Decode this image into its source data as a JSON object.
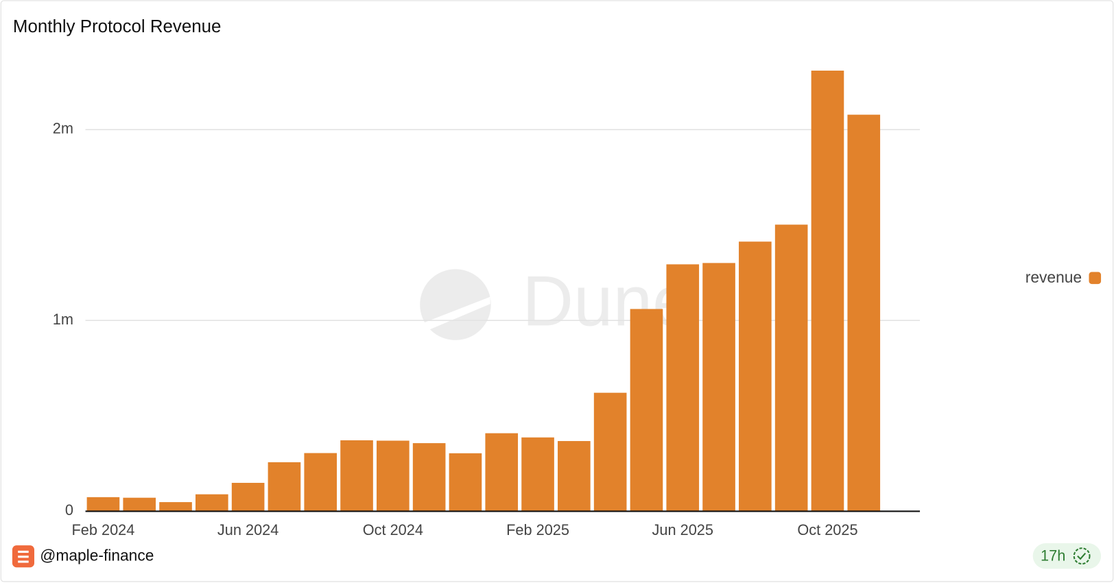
{
  "chart_data": {
    "type": "bar",
    "title": "Monthly Protocol Revenue",
    "categories": [
      "Feb 2024",
      null,
      null,
      null,
      "Jun 2024",
      null,
      null,
      null,
      "Oct 2024",
      null,
      null,
      null,
      "Feb 2025",
      null,
      null,
      null,
      "Jun 2025",
      null,
      null,
      null,
      "Oct 2025",
      null
    ],
    "series": [
      {
        "name": "revenue",
        "color": "#e2822b",
        "values": [
          74000,
          71000,
          48000,
          89000,
          149000,
          257000,
          305000,
          372000,
          370000,
          357000,
          304000,
          409000,
          387000,
          368000,
          621000,
          1060000,
          1294000,
          1301000,
          1413000,
          1502000,
          2309000,
          2078000
        ]
      }
    ],
    "ylim": [
      0,
      2400000
    ],
    "yticks": [
      0,
      {
        "value": 1000000,
        "label": "1m"
      },
      {
        "value": 2000000,
        "label": "2m"
      }
    ],
    "grid": true,
    "legend": "right",
    "watermark": "Dune"
  },
  "footer": {
    "author": "@maple-finance",
    "age": "17h"
  }
}
